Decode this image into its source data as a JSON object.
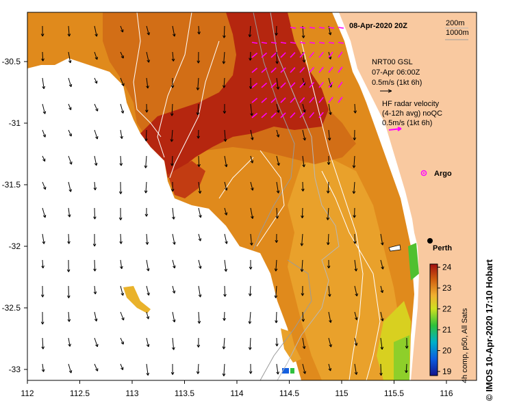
{
  "map": {
    "date": "08-Apr-2020 20Z",
    "depth_legend": [
      "200m",
      "1000m"
    ],
    "gsl_legend": [
      "NRT00 GSL",
      "07-Apr 06:00Z",
      "0.5m/s (1kt 6h)"
    ],
    "hf_legend": [
      "HF radar velocity",
      "(4-12h avg) noQC",
      "0.5m/s (1kt 6h)"
    ],
    "argo_label": "Argo",
    "city_label": "Perth",
    "credit": "© IMOS 10-Apr-2020 17:10 Hobart",
    "colorbar_title": "4h comp, p50, All Sats",
    "colorbar_ticks": [
      "19",
      "20",
      "21",
      "22",
      "23",
      "24"
    ],
    "x_ticks": [
      "112",
      "112.5",
      "113",
      "113.5",
      "114",
      "114.5",
      "115",
      "115.5",
      "116"
    ],
    "y_ticks": [
      "-30.5",
      "-31",
      "-31.5",
      "-32",
      "-32.5",
      "-33"
    ],
    "colors": {
      "land": "#f9c9a0",
      "sst_cold": "#1a1aa0",
      "sst_warm": "#b01a10",
      "hf_arrow": "#ff00ff",
      "gsl_arrow": "#000000"
    }
  }
}
